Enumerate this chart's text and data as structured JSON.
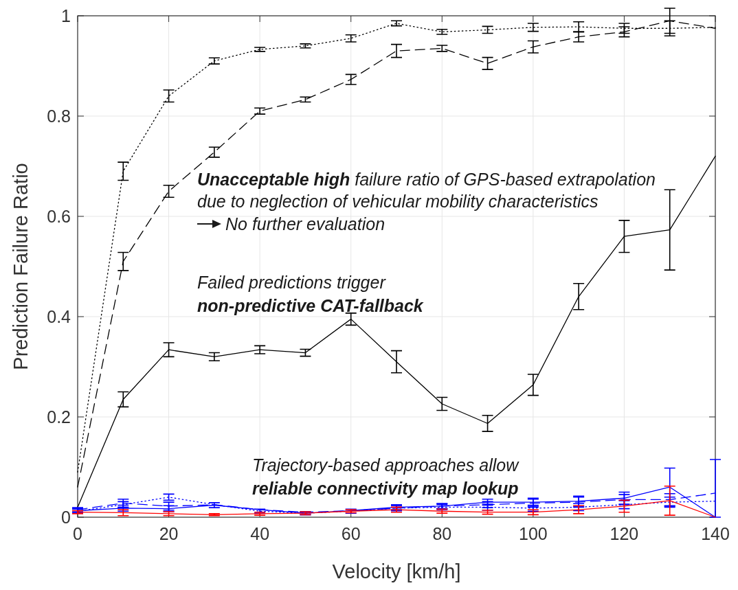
{
  "chart_data": {
    "type": "line",
    "xlabel": "Velocity [km/h]",
    "ylabel": "Prediction Failure Ratio",
    "x": [
      0,
      10,
      20,
      30,
      40,
      50,
      60,
      70,
      80,
      90,
      100,
      110,
      120,
      130,
      140
    ],
    "xlim": [
      0,
      140
    ],
    "xticks": [
      0,
      20,
      40,
      60,
      80,
      100,
      120,
      140
    ],
    "ylim": [
      0,
      1
    ],
    "yticks": [
      0,
      {
        "value": 0.2,
        "label": "0.2"
      },
      {
        "value": 0.4,
        "label": "0.4"
      },
      {
        "value": 0.6,
        "label": "0.6"
      },
      {
        "value": 0.8,
        "label": "0.8"
      },
      1
    ],
    "grid": true,
    "series": [
      {
        "color": "#000000",
        "line_style": "dotted",
        "values": [
          0.09,
          0.69,
          0.84,
          0.91,
          0.933,
          0.94,
          0.955,
          0.985,
          0.968,
          0.972,
          0.977,
          0.978,
          0.975,
          0.975,
          0.977
        ],
        "errors": [
          null,
          0.018,
          0.012,
          0.006,
          0.004,
          0.004,
          0.007,
          0.005,
          0.005,
          0.007,
          0.008,
          0.01,
          0.01,
          0.015,
          null
        ]
      },
      {
        "color": "#000000",
        "line_style": "dashed",
        "values": [
          0.06,
          0.51,
          0.65,
          0.728,
          0.81,
          0.833,
          0.873,
          0.93,
          0.935,
          0.905,
          0.938,
          0.958,
          0.968,
          0.99,
          0.975
        ],
        "errors": [
          null,
          0.018,
          0.012,
          0.01,
          0.006,
          0.005,
          0.01,
          0.013,
          0.006,
          0.012,
          0.012,
          0.01,
          0.01,
          0.025,
          null
        ]
      },
      {
        "color": "#000000",
        "line_style": "solid",
        "values": [
          0.02,
          0.235,
          0.334,
          0.32,
          0.334,
          0.328,
          0.395,
          0.31,
          0.226,
          0.187,
          0.264,
          0.44,
          0.56,
          0.573,
          0.72
        ],
        "errors": [
          null,
          0.015,
          0.014,
          0.008,
          0.008,
          0.007,
          0.012,
          0.022,
          0.013,
          0.016,
          0.021,
          0.026,
          0.032,
          0.08,
          null
        ]
      },
      {
        "color": "#0000ff",
        "line_style": "dotted",
        "values": [
          0.012,
          0.025,
          0.04,
          0.025,
          0.012,
          0.008,
          0.012,
          0.018,
          0.02,
          0.02,
          0.018,
          0.02,
          0.025,
          0.03,
          0.032
        ],
        "errors": [
          0.004,
          0.006,
          0.006,
          null,
          0.004,
          0.003,
          0.004,
          0.005,
          0.005,
          0.006,
          0.006,
          0.007,
          0.008,
          0.01,
          null
        ]
      },
      {
        "color": "#0000ff",
        "line_style": "dashed",
        "values": [
          0.015,
          0.028,
          0.022,
          0.025,
          0.015,
          0.01,
          0.013,
          0.018,
          0.022,
          0.025,
          0.028,
          0.03,
          0.035,
          0.035,
          0.048
        ],
        "errors": [
          0.004,
          0.008,
          0.008,
          null,
          null,
          null,
          null,
          0.005,
          0.005,
          0.006,
          0.008,
          0.01,
          0.01,
          0.012,
          null
        ]
      },
      {
        "color": "#0000ff",
        "line_style": "solid",
        "values": [
          0.013,
          0.018,
          0.017,
          0.024,
          0.015,
          0.008,
          0.013,
          0.02,
          0.022,
          0.03,
          0.03,
          0.032,
          0.038,
          0.06,
          0
        ],
        "errors": [
          0.004,
          0.006,
          0.006,
          0.005,
          null,
          0.003,
          null,
          0.005,
          0.005,
          0.006,
          0.008,
          0.01,
          0.012,
          0.038,
          [
            0,
            0.115
          ]
        ]
      },
      {
        "color": "#ff0000",
        "line_style": "solid",
        "values": [
          0.01,
          0.009,
          0.007,
          0.005,
          0.007,
          0.008,
          0.012,
          0.015,
          0.012,
          0.01,
          0.01,
          0.015,
          0.022,
          0.033,
          0
        ],
        "errors": [
          0.003,
          0.006,
          0.004,
          0.002,
          0.003,
          0.003,
          0.003,
          0.005,
          0.004,
          0.004,
          0.005,
          0.008,
          0.012,
          0.029,
          null
        ]
      }
    ],
    "annotations": [
      "Unacceptable high",
      "failure ratio of GPS-based extrapolation",
      "due to neglection of vehicular mobility characteristics",
      "No further evaluation",
      "Failed predictions trigger",
      "non-predictive CAT-fallback",
      "Trajectory-based approaches allow",
      "reliable connectivity map lookup"
    ]
  }
}
